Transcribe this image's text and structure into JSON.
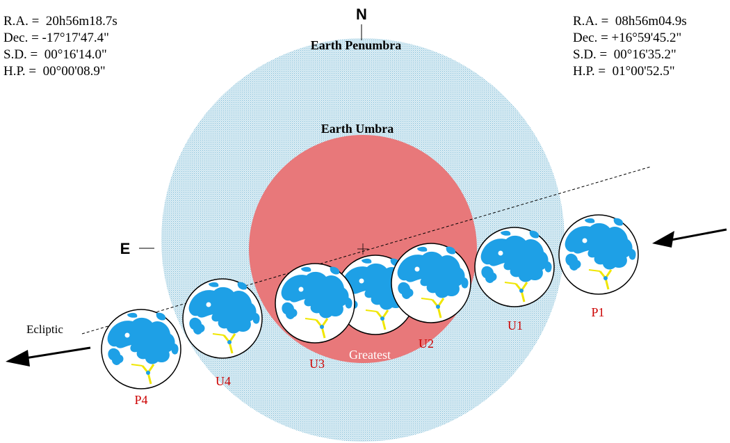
{
  "sun_coordinates": {
    "ra": "R.A. =  20h56m18.7s",
    "dec": "Dec. = -17°17'47.4\"",
    "sd": "S.D. =  00°16'14.0\"",
    "hp": "H.P. =  00°00'08.9\""
  },
  "moon_coordinates": {
    "ra": "R.A. =  08h56m04.9s",
    "dec": "Dec. = +16°59'45.2\"",
    "sd": "S.D. =  00°16'35.2\"",
    "hp": "H.P. =  01°00'52.5\""
  },
  "labels": {
    "north": "N",
    "east": "E",
    "penumbra": "Earth Penumbra",
    "umbra": "Earth Umbra",
    "ecliptic": "Ecliptic"
  },
  "moon_positions": [
    {
      "label": "P1"
    },
    {
      "label": "U1"
    },
    {
      "label": "U2"
    },
    {
      "label": "Greatest"
    },
    {
      "label": "U3"
    },
    {
      "label": "U4"
    },
    {
      "label": "P4"
    }
  ],
  "colors": {
    "penumbra": "#cde6f0",
    "penumbra_dot": "#8cc4dc",
    "umbra": "#e8787a",
    "moon_maria": "#1ea0e6",
    "moon_body": "#ffffff",
    "crater_rays": "#f0e600",
    "contact_label": "#cc0000"
  },
  "icons": {
    "direction_arrow": "arrow-icon"
  }
}
